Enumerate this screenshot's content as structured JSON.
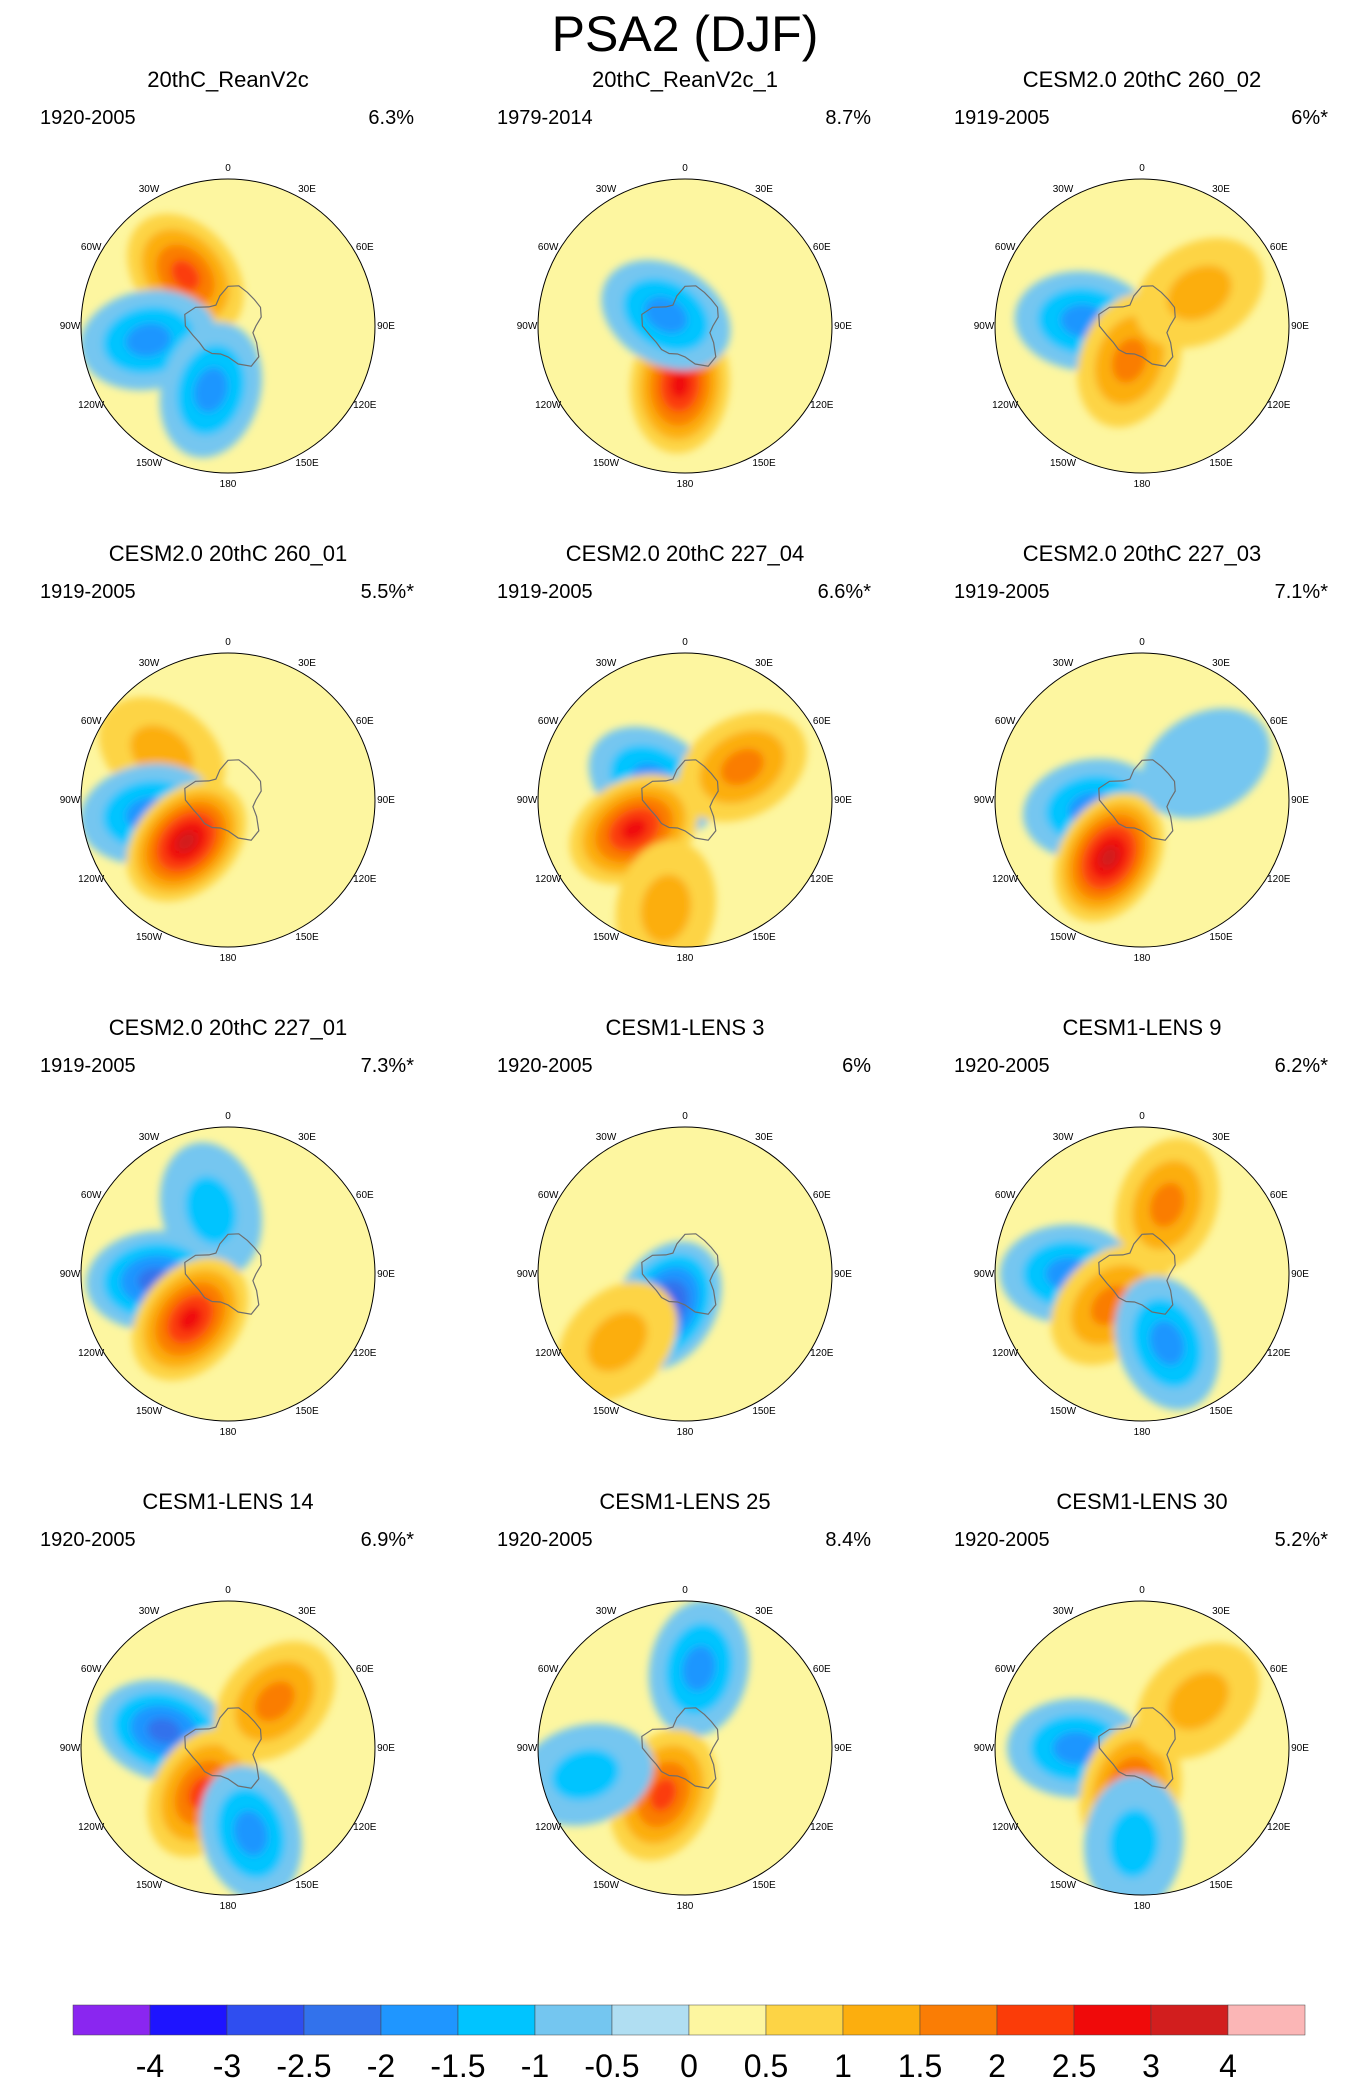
{
  "title": "PSA2 (DJF)",
  "chart_data": {
    "type": "heatmap",
    "projection": "south-polar-stereographic",
    "title": "PSA2 (DJF)",
    "longitude_labels": [
      "0",
      "30E",
      "60E",
      "90E",
      "120E",
      "150E",
      "180",
      "150W",
      "120W",
      "90W",
      "60W",
      "30W"
    ],
    "panels": [
      {
        "name": "20thC_ReanV2c",
        "period": "1920-2005",
        "variance": "6.3%",
        "features": [
          {
            "lon": -40,
            "r": 0.45,
            "sign": 1,
            "peak": 2.0
          },
          {
            "lon": -100,
            "r": 0.55,
            "sign": -1,
            "peak": -1.5
          },
          {
            "lon": -165,
            "r": 0.45,
            "sign": -1,
            "peak": -1.5
          }
        ]
      },
      {
        "name": "20thC_ReanV2c_1",
        "period": "1979-2014",
        "variance": "8.7%",
        "features": [
          {
            "lon": -175,
            "r": 0.4,
            "sign": 1,
            "peak": 2.5
          },
          {
            "lon": -60,
            "r": 0.15,
            "sign": -1,
            "peak": -1.5
          }
        ]
      },
      {
        "name": "CESM2.0 20thC 260_02",
        "period": "1919-2005",
        "variance": "6%*",
        "features": [
          {
            "lon": -85,
            "r": 0.4,
            "sign": -1,
            "peak": -1.5
          },
          {
            "lon": -160,
            "r": 0.25,
            "sign": 1,
            "peak": 1.5
          },
          {
            "lon": 60,
            "r": 0.45,
            "sign": 1,
            "peak": 1.0
          }
        ]
      },
      {
        "name": "CESM2.0 20thC 260_01",
        "period": "1919-2005",
        "variance": "5.5%*",
        "features": [
          {
            "lon": -55,
            "r": 0.55,
            "sign": 1,
            "peak": 1.0
          },
          {
            "lon": -100,
            "r": 0.55,
            "sign": -1,
            "peak": -1.5
          },
          {
            "lon": -135,
            "r": 0.4,
            "sign": 1,
            "peak": 3.0
          }
        ]
      },
      {
        "name": "CESM2.0 20thC 227_04",
        "period": "1919-2005",
        "variance": "6.6%*",
        "features": [
          {
            "lon": -60,
            "r": 0.25,
            "sign": -1,
            "peak": -1.5
          },
          {
            "lon": -120,
            "r": 0.4,
            "sign": 1,
            "peak": 2.5
          },
          {
            "lon": 60,
            "r": 0.45,
            "sign": 1,
            "peak": 1.5
          },
          {
            "lon": -170,
            "r": 0.75,
            "sign": 1,
            "peak": 1.0
          }
        ]
      },
      {
        "name": "CESM2.0 20thC 227_03",
        "period": "1919-2005",
        "variance": "7.1%*",
        "features": [
          {
            "lon": -100,
            "r": 0.35,
            "sign": -1,
            "peak": -1.5
          },
          {
            "lon": -150,
            "r": 0.45,
            "sign": 1,
            "peak": 3.0
          },
          {
            "lon": 60,
            "r": 0.5,
            "sign": -1,
            "peak": -0.5
          }
        ]
      },
      {
        "name": "CESM2.0 20thC 227_01",
        "period": "1919-2005",
        "variance": "7.3%*",
        "features": [
          {
            "lon": -15,
            "r": 0.45,
            "sign": -1,
            "peak": -1.0
          },
          {
            "lon": -95,
            "r": 0.5,
            "sign": -1,
            "peak": -2.0
          },
          {
            "lon": -140,
            "r": 0.4,
            "sign": 1,
            "peak": 2.5
          }
        ]
      },
      {
        "name": "CESM1-LENS 3",
        "period": "1920-2005",
        "variance": "6%",
        "features": [
          {
            "lon": -150,
            "r": 0.25,
            "sign": -1,
            "peak": -2.5
          },
          {
            "lon": -135,
            "r": 0.65,
            "sign": 1,
            "peak": 1.0
          }
        ]
      },
      {
        "name": "CESM1-LENS 9",
        "period": "1920-2005",
        "variance": "6.2%*",
        "features": [
          {
            "lon": 20,
            "r": 0.5,
            "sign": 1,
            "peak": 1.5
          },
          {
            "lon": -90,
            "r": 0.5,
            "sign": -1,
            "peak": -1.5
          },
          {
            "lon": -135,
            "r": 0.3,
            "sign": 1,
            "peak": 1.5
          },
          {
            "lon": 160,
            "r": 0.5,
            "sign": -1,
            "peak": -1.5
          }
        ]
      },
      {
        "name": "CESM1-LENS 14",
        "period": "1920-2005",
        "variance": "6.9%*",
        "features": [
          {
            "lon": -75,
            "r": 0.45,
            "sign": -1,
            "peak": -2.0
          },
          {
            "lon": -150,
            "r": 0.35,
            "sign": 1,
            "peak": 2.0
          },
          {
            "lon": 45,
            "r": 0.45,
            "sign": 1,
            "peak": 1.5
          },
          {
            "lon": 165,
            "r": 0.6,
            "sign": -1,
            "peak": -1.5
          }
        ]
      },
      {
        "name": "CESM1-LENS 25",
        "period": "1920-2005",
        "variance": "8.4%",
        "features": [
          {
            "lon": 10,
            "r": 0.55,
            "sign": -1,
            "peak": -1.5
          },
          {
            "lon": -155,
            "r": 0.35,
            "sign": 1,
            "peak": 2.0
          },
          {
            "lon": -105,
            "r": 0.7,
            "sign": -1,
            "peak": -1.0
          }
        ]
      },
      {
        "name": "CESM1-LENS 30",
        "period": "1920-2005",
        "variance": "5.2%*",
        "features": [
          {
            "lon": -90,
            "r": 0.45,
            "sign": -1,
            "peak": -1.5
          },
          {
            "lon": -165,
            "r": 0.3,
            "sign": 1,
            "peak": 2.0
          },
          {
            "lon": 50,
            "r": 0.5,
            "sign": 1,
            "peak": 1.0
          },
          {
            "lon": -175,
            "r": 0.65,
            "sign": -1,
            "peak": -1.0
          }
        ]
      }
    ],
    "colorbar": {
      "levels": [
        "-4",
        "-3",
        "-2.5",
        "-2",
        "-1.5",
        "-1",
        "-0.5",
        "0",
        "0.5",
        "1",
        "1.5",
        "2",
        "2.5",
        "3",
        "4"
      ],
      "colors": [
        "#8a26f0",
        "#1e14ff",
        "#2f4ef0",
        "#3272ec",
        "#1f96ff",
        "#00c4ff",
        "#74c6f0",
        "#b0def2",
        "#fdf6a0",
        "#fdd445",
        "#fcae0e",
        "#fa7d05",
        "#fb3c08",
        "#f00a0a",
        "#d21e1e",
        "#fbb6b6"
      ]
    }
  }
}
